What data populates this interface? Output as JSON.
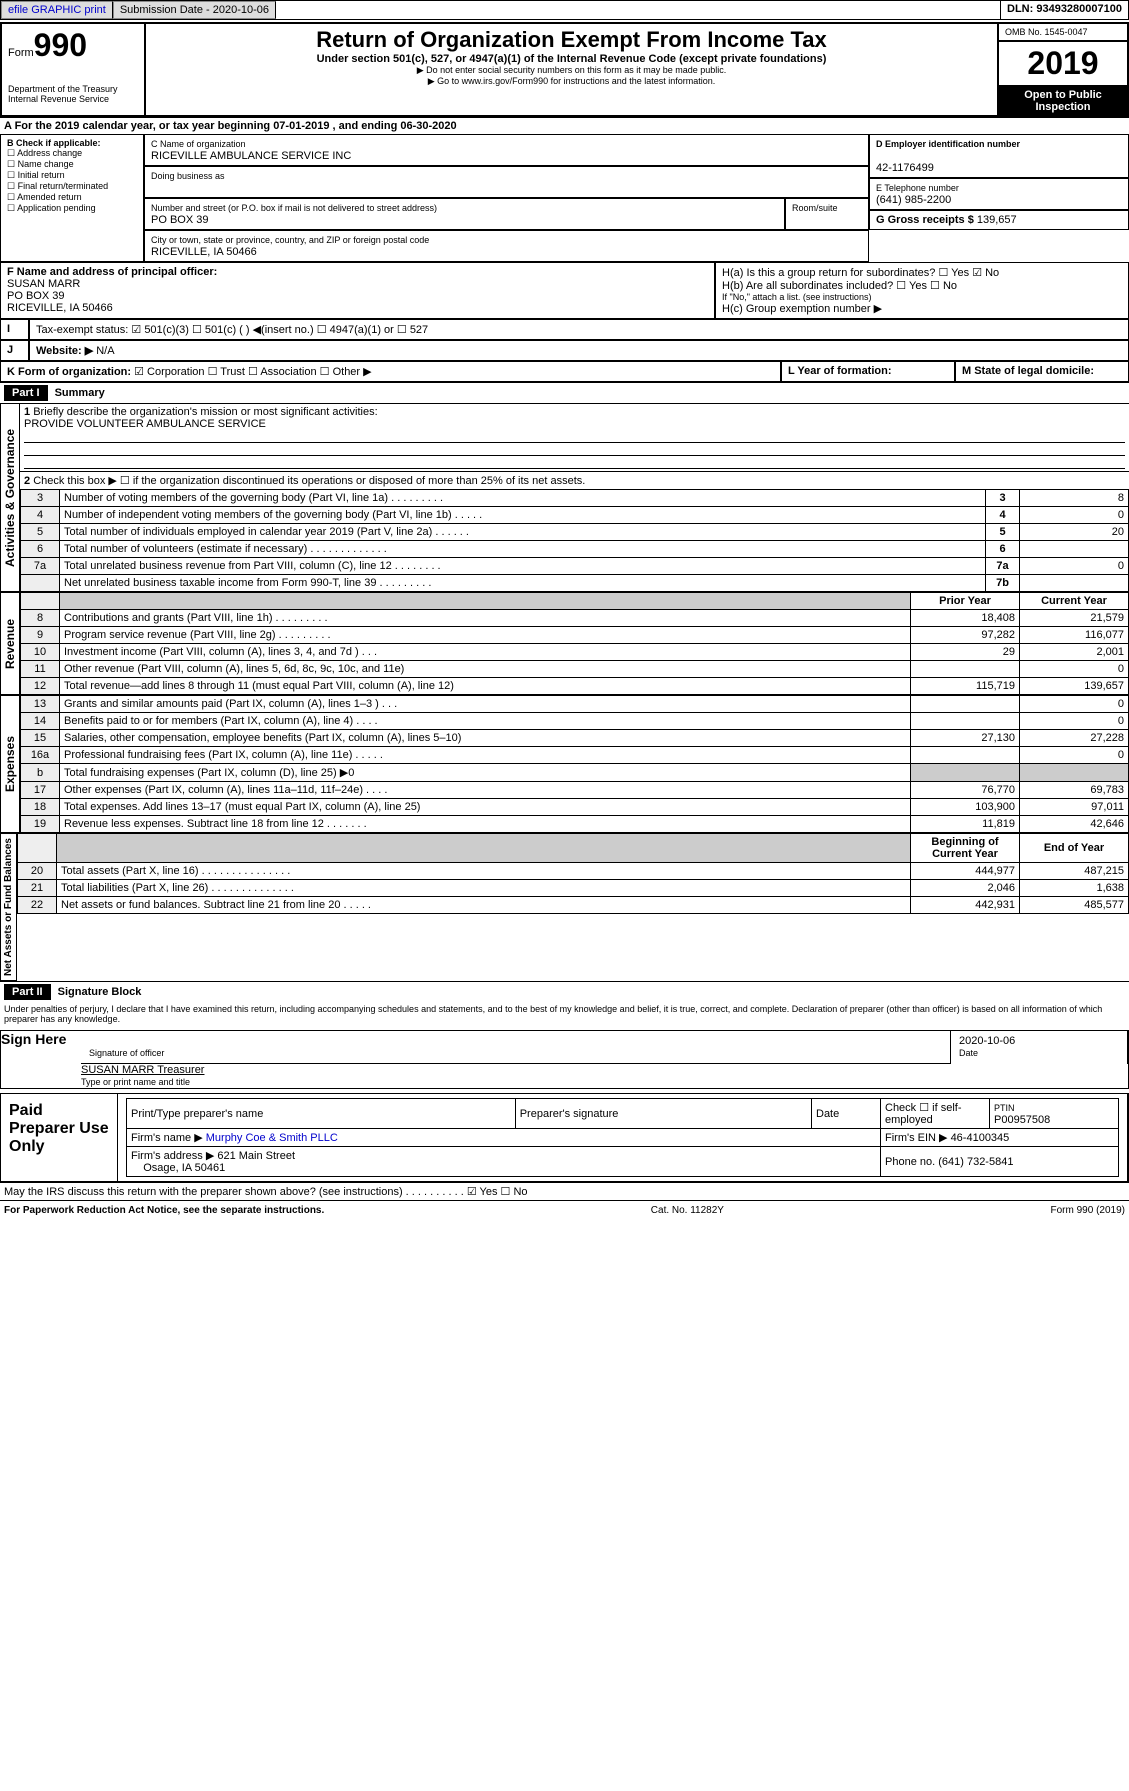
{
  "header": {
    "efile_link": "efile GRAPHIC print",
    "submission_label": "Submission Date - 2020-10-06",
    "dln": "DLN: 93493280007100"
  },
  "formtop": {
    "form_label": "Form",
    "form_no": "990",
    "title": "Return of Organization Exempt From Income Tax",
    "subtitle1": "Under section 501(c), 527, or 4947(a)(1) of the Internal Revenue Code (except private foundations)",
    "subtitle2": "▶ Do not enter social security numbers on this form as it may be made public.",
    "subtitle3": "▶ Go to www.irs.gov/Form990 for instructions and the latest information.",
    "dept": "Department of the Treasury\nInternal Revenue Service",
    "omb": "OMB No. 1545-0047",
    "year": "2019",
    "open": "Open to Public Inspection"
  },
  "periodA": "A For the 2019 calendar year, or tax year beginning 07-01-2019   , and ending 06-30-2020",
  "colB": {
    "label": "B Check if applicable:",
    "items": [
      "Address change",
      "Name change",
      "Initial return",
      "Final return/terminated",
      "Amended return",
      "Application pending"
    ]
  },
  "colC": {
    "name_label": "C Name of organization",
    "name": "RICEVILLE AMBULANCE SERVICE INC",
    "dba_label": "Doing business as",
    "addr_label": "Number and street (or P.O. box if mail is not delivered to street address)",
    "room_label": "Room/suite",
    "addr": "PO BOX 39",
    "city_label": "City or town, state or province, country, and ZIP or foreign postal code",
    "city": "RICEVILLE, IA  50466"
  },
  "colD": {
    "label": "D Employer identification number",
    "val": "42-1176499"
  },
  "colE": {
    "label": "E Telephone number",
    "val": "(641) 985-2200"
  },
  "colG": {
    "label": "G Gross receipts $",
    "val": "139,657"
  },
  "colF": {
    "label": "F  Name and address of principal officer:",
    "name": "SUSAN MARR",
    "addr": "PO BOX 39",
    "city": "RICEVILLE, IA  50466"
  },
  "colH": {
    "a": "H(a)  Is this a group return for subordinates?",
    "b": "H(b)  Are all subordinates included?",
    "b2": "If \"No,\" attach a list. (see instructions)",
    "c": "H(c)  Group exemption number ▶",
    "yes": "Yes",
    "no": "No"
  },
  "rowI": {
    "label": "Tax-exempt status:",
    "opt1": "501(c)(3)",
    "opt2": "501(c) (  ) ◀(insert no.)",
    "opt3": "4947(a)(1) or",
    "opt4": "527"
  },
  "rowJ": {
    "label": "Website: ▶",
    "val": "N/A"
  },
  "rowK": {
    "label": "K Form of organization:",
    "opts": [
      "Corporation",
      "Trust",
      "Association",
      "Other ▶"
    ]
  },
  "rowL": {
    "label": "L Year of formation:"
  },
  "rowM": {
    "label": "M State of legal domicile:"
  },
  "part1": {
    "label": "Part I",
    "title": "Summary"
  },
  "gov": {
    "l1": "Briefly describe the organization's mission or most significant activities:",
    "l1v": "PROVIDE VOLUNTEER AMBULANCE SERVICE",
    "l2": "Check this box ▶ ☐  if the organization discontinued its operations or disposed of more than 25% of its net assets.",
    "lines": [
      {
        "n": "3",
        "t": "Number of voting members of the governing body (Part VI, line 1a)  .  .  .  .  .  .  .  .  .",
        "b": "3",
        "v": "8"
      },
      {
        "n": "4",
        "t": "Number of independent voting members of the governing body (Part VI, line 1b)  .  .  .  .  .",
        "b": "4",
        "v": "0"
      },
      {
        "n": "5",
        "t": "Total number of individuals employed in calendar year 2019 (Part V, line 2a)  .  .  .  .  .  .",
        "b": "5",
        "v": "20"
      },
      {
        "n": "6",
        "t": "Total number of volunteers (estimate if necessary)  .  .  .  .  .  .  .  .  .  .  .  .  .",
        "b": "6",
        "v": ""
      },
      {
        "n": "7a",
        "t": "Total unrelated business revenue from Part VIII, column (C), line 12  .  .  .  .  .  .  .  .",
        "b": "7a",
        "v": "0"
      },
      {
        "n": "",
        "t": "Net unrelated business taxable income from Form 990-T, line 39  .  .  .  .  .  .  .  .  .",
        "b": "7b",
        "v": ""
      }
    ]
  },
  "rev": {
    "hdr_prior": "Prior Year",
    "hdr_curr": "Current Year",
    "lines": [
      {
        "n": "8",
        "t": "Contributions and grants (Part VIII, line 1h)  .  .  .  .  .  .  .  .  .",
        "p": "18,408",
        "c": "21,579"
      },
      {
        "n": "9",
        "t": "Program service revenue (Part VIII, line 2g)  .  .  .  .  .  .  .  .  .",
        "p": "97,282",
        "c": "116,077"
      },
      {
        "n": "10",
        "t": "Investment income (Part VIII, column (A), lines 3, 4, and 7d )  .  .  .",
        "p": "29",
        "c": "2,001"
      },
      {
        "n": "11",
        "t": "Other revenue (Part VIII, column (A), lines 5, 6d, 8c, 9c, 10c, and 11e)",
        "p": "",
        "c": "0"
      },
      {
        "n": "12",
        "t": "Total revenue—add lines 8 through 11 (must equal Part VIII, column (A), line 12)",
        "p": "115,719",
        "c": "139,657"
      }
    ]
  },
  "exp": {
    "lines": [
      {
        "n": "13",
        "t": "Grants and similar amounts paid (Part IX, column (A), lines 1–3 )  .  .  .",
        "p": "",
        "c": "0"
      },
      {
        "n": "14",
        "t": "Benefits paid to or for members (Part IX, column (A), line 4)  .  .  .  .",
        "p": "",
        "c": "0"
      },
      {
        "n": "15",
        "t": "Salaries, other compensation, employee benefits (Part IX, column (A), lines 5–10)",
        "p": "27,130",
        "c": "27,228"
      },
      {
        "n": "16a",
        "t": "Professional fundraising fees (Part IX, column (A), line 11e)  .  .  .  .  .",
        "p": "",
        "c": "0"
      },
      {
        "n": "b",
        "t": "Total fundraising expenses (Part IX, column (D), line 25) ▶0",
        "p": "—",
        "c": "—"
      },
      {
        "n": "17",
        "t": "Other expenses (Part IX, column (A), lines 11a–11d, 11f–24e)  .  .  .  .",
        "p": "76,770",
        "c": "69,783"
      },
      {
        "n": "18",
        "t": "Total expenses. Add lines 13–17 (must equal Part IX, column (A), line 25)",
        "p": "103,900",
        "c": "97,011"
      },
      {
        "n": "19",
        "t": "Revenue less expenses. Subtract line 18 from line 12  .  .  .  .  .  .  .",
        "p": "11,819",
        "c": "42,646"
      }
    ]
  },
  "net": {
    "hdr_begin": "Beginning of Current Year",
    "hdr_end": "End of Year",
    "lines": [
      {
        "n": "20",
        "t": "Total assets (Part X, line 16)  .  .  .  .  .  .  .  .  .  .  .  .  .  .  .",
        "p": "444,977",
        "c": "487,215"
      },
      {
        "n": "21",
        "t": "Total liabilities (Part X, line 26)  .  .  .  .  .  .  .  .  .  .  .  .  .  .",
        "p": "2,046",
        "c": "1,638"
      },
      {
        "n": "22",
        "t": "Net assets or fund balances. Subtract line 21 from line 20  .  .  .  .  .",
        "p": "442,931",
        "c": "485,577"
      }
    ]
  },
  "part2": {
    "label": "Part II",
    "title": "Signature Block"
  },
  "sigtext": "Under penalties of perjury, I declare that I have examined this return, including accompanying schedules and statements, and to the best of my knowledge and belief, it is true, correct, and complete. Declaration of preparer (other than officer) is based on all information of which preparer has any knowledge.",
  "sign": {
    "here": "Sign Here",
    "sig_label": "Signature of officer",
    "date_label": "Date",
    "date": "2020-10-06",
    "name": "SUSAN MARR Treasurer",
    "name_label": "Type or print name and title"
  },
  "paid": {
    "label": "Paid Preparer Use Only",
    "prep_name_label": "Print/Type preparer's name",
    "prep_sig_label": "Preparer's signature",
    "date_label": "Date",
    "check_label": "Check ☐ if self-employed",
    "ptin_label": "PTIN",
    "ptin": "P00957508",
    "firm_name_label": "Firm's name    ▶",
    "firm_name": "Murphy Coe & Smith PLLC",
    "firm_ein_label": "Firm's EIN ▶",
    "firm_ein": "46-4100345",
    "firm_addr_label": "Firm's address ▶",
    "firm_addr": "621 Main Street",
    "firm_city": "Osage, IA  50461",
    "phone_label": "Phone no.",
    "phone": "(641) 732-5841"
  },
  "discuss": "May the IRS discuss this return with the preparer shown above? (see instructions)  .  .  .  .  .  .  .  .  .  .",
  "footer": {
    "left": "For Paperwork Reduction Act Notice, see the separate instructions.",
    "mid": "Cat. No. 11282Y",
    "right": "Form 990 (2019)"
  },
  "sidelabels": {
    "gov": "Activities & Governance",
    "rev": "Revenue",
    "exp": "Expenses",
    "net": "Net Assets or Fund Balances"
  }
}
